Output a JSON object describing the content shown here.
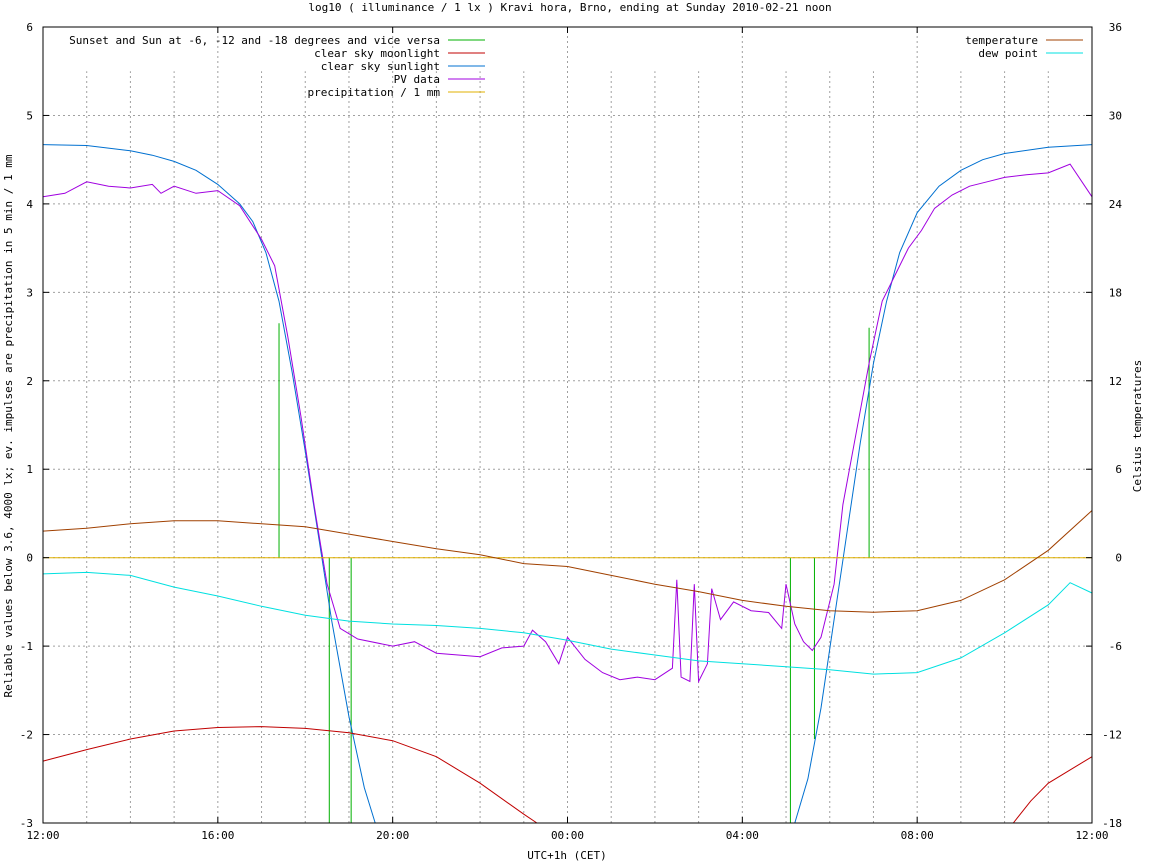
{
  "chart_data": {
    "type": "line",
    "title": "log10 ( illuminance / 1 lx ) Kravi hora, Brno, ending at Sunday 2010-02-21 noon",
    "xlabel": "UTC+1h (CET)",
    "ylabel": "Reliable values below 3.6, 4000 lx; ev. impulses are precipitation in 5 min / 1 mm",
    "y2label": "Celsius temperatures",
    "xlim": [
      0,
      24
    ],
    "ylim": [
      -3,
      6
    ],
    "y2lim": [
      -18,
      36
    ],
    "x_ticks": [
      {
        "v": 0,
        "label": "12:00"
      },
      {
        "v": 4,
        "label": "16:00"
      },
      {
        "v": 8,
        "label": "20:00"
      },
      {
        "v": 12,
        "label": "00:00"
      },
      {
        "v": 16,
        "label": "04:00"
      },
      {
        "v": 20,
        "label": "08:00"
      },
      {
        "v": 24,
        "label": "12:00"
      }
    ],
    "y_ticks": [
      "-3",
      "-2",
      "-1",
      "0",
      "1",
      "2",
      "3",
      "4",
      "5",
      "6"
    ],
    "y2_ticks": [
      "-18",
      "-12",
      "-6",
      "0",
      "6",
      "12",
      "18",
      "24",
      "30",
      "36"
    ],
    "grid": true,
    "legend_left": [
      {
        "name": "Sunset and Sun at -6, -12 and -18 degrees and vice versa",
        "color": "#00b000"
      },
      {
        "name": "clear sky moonlight",
        "color": "#c00000"
      },
      {
        "name": "clear sky sunlight",
        "color": "#0070d0"
      },
      {
        "name": "PV data",
        "color": "#a000e0"
      },
      {
        "name": "precipitation / 1 mm",
        "color": "#e0b000"
      }
    ],
    "legend_right": [
      {
        "name": "temperature",
        "color": "#a04000"
      },
      {
        "name": "dew point",
        "color": "#00e0e0"
      }
    ],
    "sun_events": [
      {
        "x": 5.4,
        "top": 2.65
      },
      {
        "x": 6.45,
        "top": 0.0
      },
      {
        "x": 6.55,
        "top": -3.0
      },
      {
        "x": 7.05,
        "top": -3.0
      },
      {
        "x": 17.1,
        "top": -3.0
      },
      {
        "x": 17.65,
        "top": -2.05
      },
      {
        "x": 18.1,
        "top": 0.0
      },
      {
        "x": 18.9,
        "top": 2.6
      }
    ],
    "series": [
      {
        "name": "clear sky sunlight",
        "color": "#0070d0",
        "points": [
          [
            0,
            4.67
          ],
          [
            1,
            4.66
          ],
          [
            2,
            4.6
          ],
          [
            2.5,
            4.55
          ],
          [
            3,
            4.48
          ],
          [
            3.5,
            4.38
          ],
          [
            4,
            4.22
          ],
          [
            4.5,
            4.0
          ],
          [
            4.8,
            3.8
          ],
          [
            5.1,
            3.45
          ],
          [
            5.4,
            2.9
          ],
          [
            5.7,
            2.1
          ],
          [
            6.0,
            1.2
          ],
          [
            6.3,
            0.25
          ],
          [
            6.6,
            -0.7
          ],
          [
            7.0,
            -1.8
          ],
          [
            7.35,
            -2.6
          ],
          [
            7.6,
            -3.0
          ]
        ]
      },
      {
        "name": "clear sky sunlight",
        "color": "#0070d0",
        "points": [
          [
            17.2,
            -3.0
          ],
          [
            17.5,
            -2.5
          ],
          [
            17.8,
            -1.7
          ],
          [
            18.1,
            -0.7
          ],
          [
            18.4,
            0.3
          ],
          [
            18.7,
            1.3
          ],
          [
            19.0,
            2.2
          ],
          [
            19.3,
            2.9
          ],
          [
            19.6,
            3.45
          ],
          [
            20.0,
            3.9
          ],
          [
            20.5,
            4.2
          ],
          [
            21,
            4.38
          ],
          [
            21.5,
            4.5
          ],
          [
            22,
            4.57
          ],
          [
            23,
            4.64
          ],
          [
            24,
            4.67
          ]
        ]
      },
      {
        "name": "clear sky moonlight",
        "color": "#c00000",
        "points": [
          [
            0,
            -2.3
          ],
          [
            1,
            -2.17
          ],
          [
            2,
            -2.05
          ],
          [
            3,
            -1.96
          ],
          [
            4,
            -1.92
          ],
          [
            5,
            -1.91
          ],
          [
            6,
            -1.93
          ],
          [
            7,
            -1.98
          ],
          [
            8,
            -2.07
          ],
          [
            9,
            -2.25
          ],
          [
            10,
            -2.55
          ],
          [
            11,
            -2.9
          ],
          [
            11.3,
            -3.0
          ]
        ]
      },
      {
        "name": "clear sky moonlight",
        "color": "#c00000",
        "points": [
          [
            22.2,
            -3.0
          ],
          [
            22.6,
            -2.75
          ],
          [
            23,
            -2.55
          ],
          [
            23.5,
            -2.4
          ],
          [
            24,
            -2.25
          ]
        ]
      },
      {
        "name": "PV data",
        "color": "#a000e0",
        "points": [
          [
            0,
            4.08
          ],
          [
            0.5,
            4.12
          ],
          [
            1,
            4.25
          ],
          [
            1.5,
            4.2
          ],
          [
            2,
            4.18
          ],
          [
            2.5,
            4.22
          ],
          [
            2.7,
            4.12
          ],
          [
            3,
            4.2
          ],
          [
            3.5,
            4.12
          ],
          [
            4,
            4.15
          ],
          [
            4.5,
            3.98
          ],
          [
            5.0,
            3.6
          ],
          [
            5.3,
            3.3
          ],
          [
            5.6,
            2.5
          ],
          [
            5.9,
            1.6
          ],
          [
            6.2,
            0.6
          ],
          [
            6.5,
            -0.3
          ],
          [
            6.8,
            -0.8
          ],
          [
            7.2,
            -0.92
          ],
          [
            8,
            -1.0
          ],
          [
            8.5,
            -0.95
          ],
          [
            9,
            -1.08
          ],
          [
            9.5,
            -1.1
          ],
          [
            10,
            -1.12
          ],
          [
            10.5,
            -1.02
          ],
          [
            11,
            -1.0
          ],
          [
            11.2,
            -0.82
          ],
          [
            11.5,
            -0.95
          ],
          [
            11.8,
            -1.2
          ],
          [
            12,
            -0.9
          ],
          [
            12.4,
            -1.15
          ],
          [
            12.8,
            -1.3
          ],
          [
            13.2,
            -1.38
          ],
          [
            13.6,
            -1.35
          ],
          [
            14,
            -1.38
          ],
          [
            14.4,
            -1.25
          ],
          [
            14.5,
            -0.25
          ],
          [
            14.6,
            -1.35
          ],
          [
            14.8,
            -1.4
          ],
          [
            14.9,
            -0.3
          ],
          [
            15.0,
            -1.4
          ],
          [
            15.2,
            -1.2
          ],
          [
            15.3,
            -0.35
          ],
          [
            15.5,
            -0.7
          ],
          [
            15.8,
            -0.5
          ],
          [
            16.2,
            -0.6
          ],
          [
            16.6,
            -0.62
          ],
          [
            16.9,
            -0.8
          ],
          [
            17.0,
            -0.3
          ],
          [
            17.2,
            -0.75
          ],
          [
            17.4,
            -0.95
          ],
          [
            17.6,
            -1.05
          ],
          [
            17.8,
            -0.9
          ],
          [
            18.1,
            -0.3
          ],
          [
            18.3,
            0.6
          ],
          [
            18.6,
            1.4
          ],
          [
            18.9,
            2.2
          ],
          [
            19.2,
            2.9
          ],
          [
            19.5,
            3.2
          ],
          [
            19.8,
            3.5
          ],
          [
            20.1,
            3.7
          ],
          [
            20.4,
            3.95
          ],
          [
            20.8,
            4.1
          ],
          [
            21.2,
            4.2
          ],
          [
            21.6,
            4.25
          ],
          [
            22,
            4.3
          ],
          [
            22.5,
            4.33
          ],
          [
            23,
            4.35
          ],
          [
            23.5,
            4.45
          ],
          [
            24,
            4.08
          ]
        ]
      },
      {
        "name": "precipitation / 1 mm",
        "color": "#e0b000",
        "points": [
          [
            0,
            0
          ],
          [
            24,
            0
          ]
        ]
      },
      {
        "name": "temperature",
        "color": "#a04000",
        "axis": "y2",
        "points": [
          [
            0,
            1.8
          ],
          [
            1,
            2.0
          ],
          [
            2,
            2.3
          ],
          [
            3,
            2.5
          ],
          [
            4,
            2.5
          ],
          [
            5,
            2.3
          ],
          [
            6,
            2.1
          ],
          [
            7,
            1.6
          ],
          [
            8,
            1.1
          ],
          [
            9,
            0.6
          ],
          [
            10,
            0.2
          ],
          [
            11,
            -0.4
          ],
          [
            12,
            -0.6
          ],
          [
            13,
            -1.2
          ],
          [
            14,
            -1.8
          ],
          [
            15,
            -2.3
          ],
          [
            16,
            -2.9
          ],
          [
            17,
            -3.3
          ],
          [
            18,
            -3.6
          ],
          [
            19,
            -3.7
          ],
          [
            20,
            -3.6
          ],
          [
            21,
            -2.9
          ],
          [
            22,
            -1.5
          ],
          [
            23,
            0.5
          ],
          [
            24,
            3.2
          ]
        ]
      },
      {
        "name": "dew point",
        "color": "#00e0e0",
        "axis": "y2",
        "points": [
          [
            0,
            -1.1
          ],
          [
            1,
            -1.0
          ],
          [
            1.5,
            -1.1
          ],
          [
            2,
            -1.2
          ],
          [
            3,
            -2.0
          ],
          [
            4,
            -2.6
          ],
          [
            5,
            -3.3
          ],
          [
            6,
            -3.9
          ],
          [
            7,
            -4.3
          ],
          [
            8,
            -4.5
          ],
          [
            9,
            -4.6
          ],
          [
            10,
            -4.8
          ],
          [
            11,
            -5.1
          ],
          [
            12,
            -5.6
          ],
          [
            13,
            -6.2
          ],
          [
            14,
            -6.6
          ],
          [
            15,
            -7.0
          ],
          [
            16,
            -7.2
          ],
          [
            17,
            -7.4
          ],
          [
            18,
            -7.6
          ],
          [
            19,
            -7.9
          ],
          [
            20,
            -7.8
          ],
          [
            21,
            -6.8
          ],
          [
            22,
            -5.1
          ],
          [
            23,
            -3.2
          ],
          [
            23.5,
            -1.7
          ],
          [
            24,
            -2.4
          ]
        ]
      }
    ]
  }
}
